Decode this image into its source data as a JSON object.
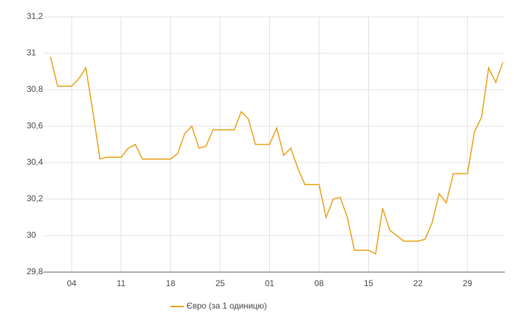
{
  "chart_data": {
    "type": "line",
    "categories": [
      null,
      null,
      null,
      "04",
      null,
      null,
      null,
      null,
      null,
      null,
      "11",
      null,
      null,
      null,
      null,
      null,
      null,
      "18",
      null,
      null,
      null,
      null,
      null,
      null,
      "25",
      null,
      null,
      null,
      null,
      null,
      null,
      "01",
      null,
      null,
      null,
      null,
      null,
      null,
      "08",
      null,
      null,
      null,
      null,
      null,
      null,
      "15",
      null,
      null,
      null,
      null,
      null,
      null,
      "22",
      null,
      null,
      null,
      null,
      null,
      null,
      "29",
      null,
      null,
      null,
      null,
      null
    ],
    "series": [
      {
        "name": "Євро (за 1 одиницю)",
        "color": "#e8a21a",
        "values": [
          30.98,
          30.82,
          30.82,
          30.82,
          30.86,
          30.92,
          30.68,
          30.42,
          30.43,
          30.43,
          30.43,
          30.48,
          30.5,
          30.42,
          30.42,
          30.42,
          30.42,
          30.42,
          30.45,
          30.56,
          30.6,
          30.48,
          30.49,
          30.58,
          30.58,
          30.58,
          30.58,
          30.68,
          30.64,
          30.5,
          30.5,
          30.5,
          30.59,
          30.44,
          30.48,
          30.37,
          30.28,
          30.28,
          30.28,
          30.1,
          30.2,
          30.21,
          30.1,
          29.92,
          29.92,
          29.92,
          29.9,
          30.15,
          30.03,
          30.0,
          29.97,
          29.97,
          29.97,
          29.98,
          30.07,
          30.23,
          30.18,
          30.34,
          30.34,
          30.34,
          30.57,
          30.65,
          30.92,
          30.84,
          30.95
        ]
      }
    ],
    "ylim": [
      29.8,
      31.2
    ],
    "yticks": [
      {
        "value": 29.8,
        "label": "29,8"
      },
      30,
      {
        "value": 30.2,
        "label": "30,2"
      },
      {
        "value": 30.4,
        "label": "30,4"
      },
      {
        "value": 30.6,
        "label": "30,6"
      },
      {
        "value": 30.8,
        "label": "30,8"
      },
      31,
      {
        "value": 31.2,
        "label": "31,2"
      }
    ],
    "grid": true,
    "legend": "bottom"
  }
}
